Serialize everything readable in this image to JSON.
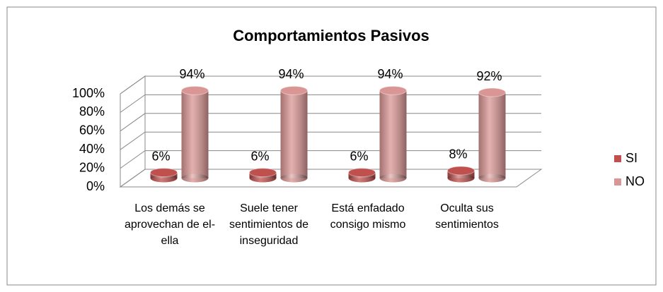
{
  "chart_data": {
    "type": "bar3d",
    "title": "Comportamientos  Pasivos",
    "categories": [
      "Los demás se aprovechan de el-ella",
      "Suele tener sentimientos de inseguridad",
      "Está enfadado consigo mismo",
      "Oculta sus sentimientos"
    ],
    "series": [
      {
        "name": "SI",
        "color": "#c0504d",
        "values": [
          6,
          6,
          6,
          8
        ],
        "value_labels": [
          "6%",
          "6%",
          "6%",
          "8%"
        ]
      },
      {
        "name": "NO",
        "color": "#d99694",
        "values": [
          94,
          94,
          94,
          92
        ],
        "value_labels": [
          "94%",
          "94%",
          "94%",
          "92%"
        ]
      }
    ],
    "ylim": [
      0,
      100
    ],
    "yticks": [
      {
        "value": 0,
        "label": "0%"
      },
      {
        "value": 20,
        "label": "20%"
      },
      {
        "value": 40,
        "label": "40%"
      },
      {
        "value": 60,
        "label": "60%"
      },
      {
        "value": 80,
        "label": "80%"
      },
      {
        "value": 100,
        "label": "100%"
      }
    ],
    "grid": true,
    "legend": "right"
  }
}
